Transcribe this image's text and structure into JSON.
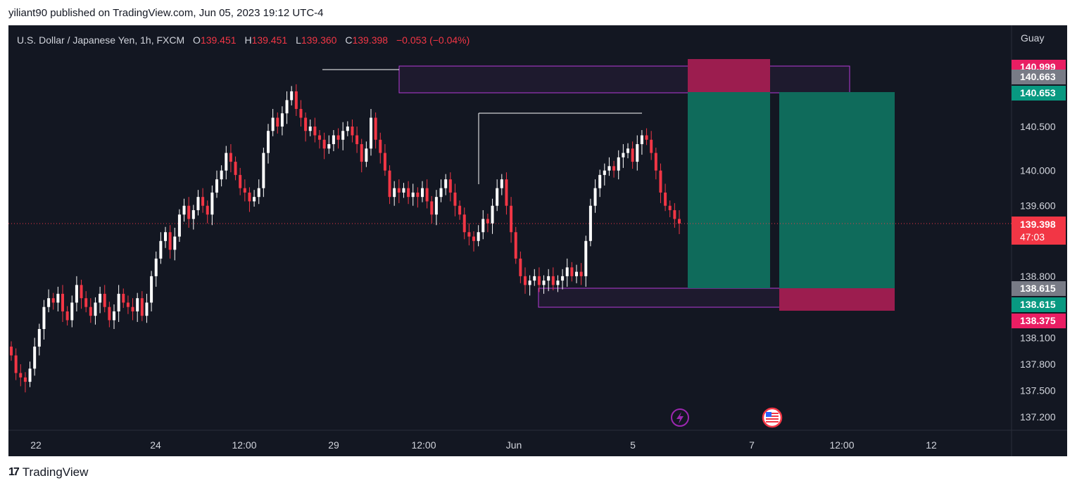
{
  "caption": "yiliant90 published on TradingView.com, Jun 05, 2023 19:12 UTC-4",
  "footer_brand": "TradingView",
  "footer_icon": "tradingview-logo-icon",
  "colors": {
    "background": "#131722",
    "up": "#ffffff",
    "down": "#f23645",
    "stop_zone": "#9c1d4f",
    "target_zone": "#0f6b5b",
    "supply_zone_border": "#b43bd8",
    "current_price": "#f23645",
    "target_label": "#089981",
    "axis_text": "#d1d4dc"
  },
  "chart_data": {
    "type": "candlestick",
    "symbol": "U.S. Dollar / Japanese Yen",
    "interval": "1h",
    "exchange": "FXCM",
    "ohlc": {
      "o_label": "O",
      "o": "139.451",
      "h_label": "H",
      "h": "139.451",
      "l_label": "L",
      "l": "139.360",
      "c_label": "C",
      "c": "139.398",
      "change": "−0.053 (−0.04%)"
    },
    "currency_label": "Guay",
    "ylim": [
      137.05,
      141.65
    ],
    "y_ticks": [
      "140.500",
      "140.000",
      "139.600",
      "138.800",
      "138.100",
      "137.800",
      "137.500",
      "137.200"
    ],
    "x_ticks": [
      "22",
      "24",
      "12:00",
      "29",
      "12:00",
      "Jun",
      "5",
      "7",
      "12:00",
      "12"
    ],
    "price_labels": [
      {
        "value": "140.999",
        "role": "stop-loss"
      },
      {
        "value": "140.663",
        "role": "entry"
      },
      {
        "value": "140.653",
        "role": "target"
      },
      {
        "value": "138.615",
        "role": "entry"
      },
      {
        "value": "138.615",
        "role": "target"
      },
      {
        "value": "138.375",
        "role": "stop-loss"
      }
    ],
    "current_price": {
      "value": "139.398",
      "countdown": "47:03"
    },
    "series_close": [
      137.9,
      137.7,
      137.65,
      137.6,
      137.75,
      138.0,
      138.2,
      138.45,
      138.55,
      138.5,
      138.6,
      138.4,
      138.3,
      138.5,
      138.7,
      138.55,
      138.45,
      138.35,
      138.5,
      138.6,
      138.45,
      138.3,
      138.4,
      138.6,
      138.5,
      138.45,
      138.4,
      138.55,
      138.35,
      138.5,
      138.8,
      139.0,
      139.2,
      139.3,
      139.1,
      139.25,
      139.5,
      139.6,
      139.45,
      139.55,
      139.7,
      139.6,
      139.5,
      139.75,
      139.9,
      140.0,
      140.2,
      140.1,
      139.95,
      139.8,
      139.75,
      139.65,
      139.7,
      139.8,
      140.2,
      140.45,
      140.6,
      140.5,
      140.65,
      140.8,
      140.9,
      140.7,
      140.6,
      140.45,
      140.5,
      140.4,
      140.35,
      140.25,
      140.3,
      140.4,
      140.35,
      140.45,
      140.5,
      140.4,
      140.3,
      140.1,
      140.25,
      140.6,
      140.35,
      140.2,
      140.0,
      139.7,
      139.8,
      139.75,
      139.8,
      139.7,
      139.75,
      139.7,
      139.8,
      139.65,
      139.5,
      139.7,
      139.8,
      139.9,
      139.75,
      139.6,
      139.5,
      139.3,
      139.25,
      139.2,
      139.3,
      139.45,
      139.4,
      139.6,
      139.8,
      139.9,
      139.6,
      139.3,
      139.0,
      138.8,
      138.7,
      138.75,
      138.8,
      138.7,
      138.75,
      138.8,
      138.7,
      138.75,
      138.8,
      138.9,
      138.8,
      138.85,
      138.8,
      139.2,
      139.6,
      139.8,
      139.95,
      140.0,
      140.05,
      140.0,
      140.15,
      140.2,
      140.25,
      140.1,
      140.3,
      140.4,
      140.35,
      140.2,
      140.0,
      139.75,
      139.6,
      139.55,
      139.45,
      139.398
    ]
  }
}
